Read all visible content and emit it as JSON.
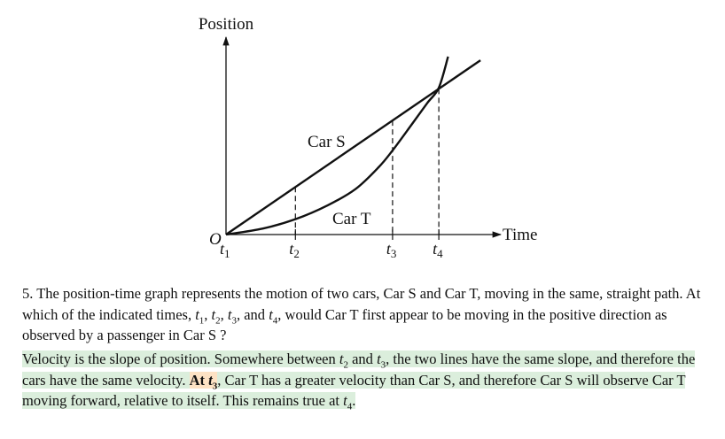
{
  "chart_data": {
    "type": "line",
    "ylabel": "Position",
    "xlabel": "Time",
    "origin_label": "O",
    "ticks": [
      {
        "name": "t",
        "sub": "1",
        "x": 0
      },
      {
        "name": "t",
        "sub": "2",
        "x": 1.5
      },
      {
        "name": "t",
        "sub": "3",
        "x": 3.6
      },
      {
        "name": "t",
        "sub": "4",
        "x": 4.6
      }
    ],
    "series": [
      {
        "name": "Car S",
        "kind": "linear",
        "x": [
          0,
          5.5
        ],
        "y": [
          0,
          3.75
        ]
      },
      {
        "name": "Car T",
        "kind": "curve",
        "x": [
          0,
          0.8,
          1.5,
          2.2,
          2.8,
          3.3,
          3.6,
          4.0,
          4.35,
          4.6,
          4.8
        ],
        "y": [
          0,
          0.13,
          0.33,
          0.63,
          0.98,
          1.45,
          1.81,
          2.35,
          2.83,
          3.16,
          3.83
        ]
      }
    ],
    "xlim": [
      0,
      6
    ],
    "ylim": [
      0,
      4.4
    ],
    "axis_color": "#111111",
    "grid": false
  },
  "question": {
    "prefix": "5. The position-time graph represents the motion of two cars, Car S and Car T, moving in the same, straight path. At which of the indicated times, ",
    "t1": "t",
    "t1_sub": "1",
    "sep1": ", ",
    "t2": "t",
    "t2_sub": "2",
    "sep2": ", ",
    "t3": "t",
    "t3_sub": "3",
    "sep3": ", and ",
    "t4": "t",
    "t4_sub": "4",
    "suffix": ", would Car T first appear to be moving in the positive direction as observed by a passenger in Car S ?"
  },
  "answer": {
    "part1": "Velocity is the slope of position. Somewhere between ",
    "ta": "t",
    "ta_sub": "2",
    "and": " and ",
    "tb": "t",
    "tb_sub": "3",
    "part2": ", the two lines have the same slope, and therefore the cars have the same velocity. ",
    "strong_prefix": "At ",
    "strong_t": "t",
    "strong_sub": "3",
    "part3": ", Car T has a greater velocity than Car S, and therefore Car S will observe Car T moving forward, relative to itself. This remains true at ",
    "tc": "t",
    "tc_sub": "4",
    "end": "."
  },
  "colors": {
    "highlight": "#dbeedc",
    "strong_highlight": "#fde2c4"
  }
}
